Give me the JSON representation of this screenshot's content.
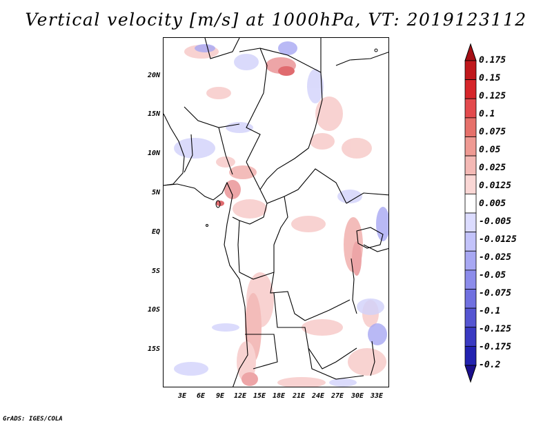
{
  "title": "Vertical velocity [m/s] at 1000hPa, VT: 2019123112",
  "credit": "GrADS: IGES/COLA",
  "lat_labels": [
    "20N",
    "15N",
    "10N",
    "5N",
    "EQ",
    "5S",
    "10S",
    "15S"
  ],
  "lon_labels": [
    "3E",
    "6E",
    "9E",
    "12E",
    "15E",
    "18E",
    "21E",
    "24E",
    "27E",
    "30E",
    "33E"
  ],
  "colorbar": {
    "labels": [
      "0.175",
      "0.15",
      "0.125",
      "0.1",
      "0.075",
      "0.05",
      "0.025",
      "0.0125",
      "0.005",
      "-0.005",
      "-0.0125",
      "-0.025",
      "-0.05",
      "-0.075",
      "-0.1",
      "-0.125",
      "-0.175",
      "-0.2"
    ],
    "colors": [
      "#a50f15",
      "#c0181c",
      "#d6252a",
      "#e34a4d",
      "#e6706a",
      "#ef9a93",
      "#f4b9b5",
      "#fad7d5",
      "#ffffff",
      "#dcdcff",
      "#c3c3fa",
      "#a8a8f3",
      "#8c8ceb",
      "#7070e0",
      "#5555d2",
      "#3a3ac2",
      "#2222b0",
      "#1a0f8c"
    ]
  }
}
